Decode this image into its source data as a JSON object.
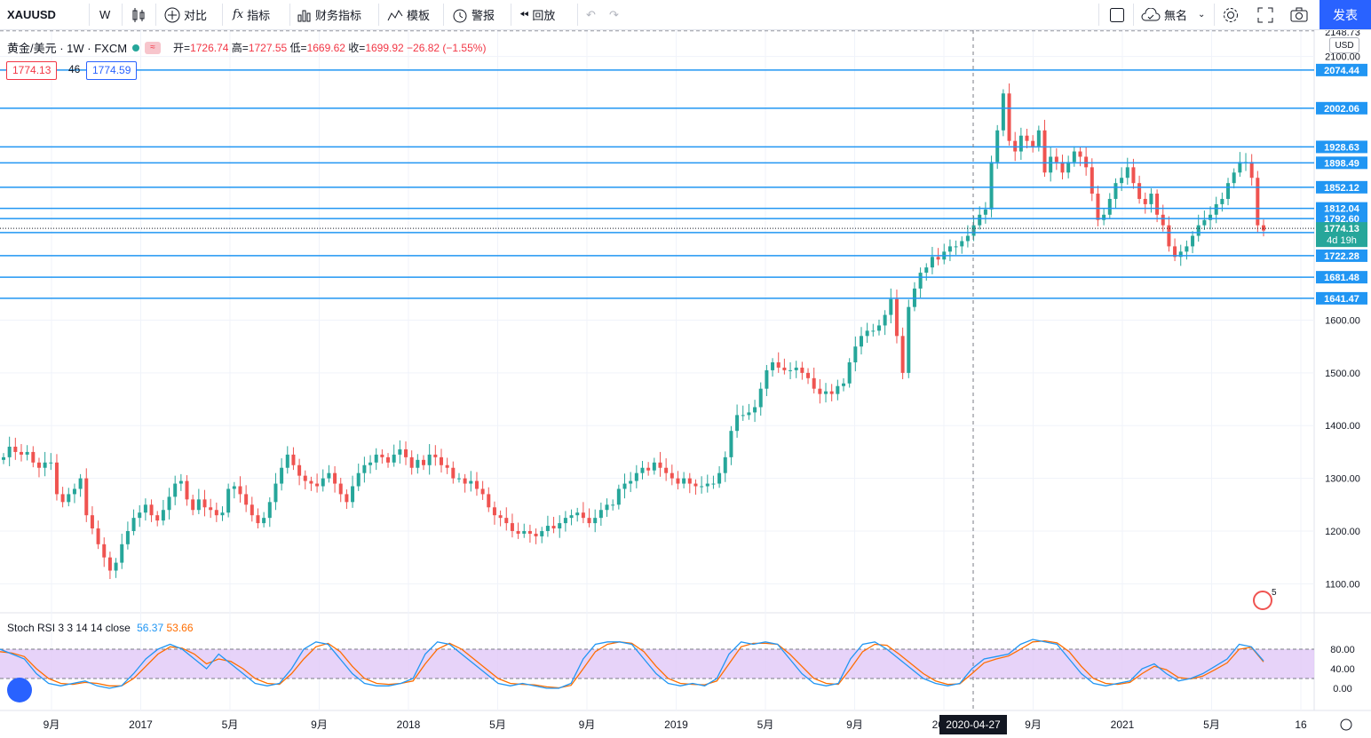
{
  "toolbar": {
    "symbol": "XAUUSD",
    "interval": "W",
    "compare": "对比",
    "indicators": "指标",
    "financials": "财务指标",
    "templates": "模板",
    "alert": "警报",
    "replay": "回放",
    "layout_name": "無名",
    "publish": "发表"
  },
  "legend": {
    "title": "黄金/美元 · 1W · FXCM",
    "open_label": "开=",
    "open": "1726.74",
    "high_label": "高=",
    "high": "1727.55",
    "low_label": "低=",
    "low": "1669.62",
    "close_label": "收=",
    "close": "1699.92",
    "change": "−26.82 (−1.55%)",
    "bid": "1774.13",
    "spread": "46",
    "ask": "1774.59"
  },
  "currency": "USD",
  "stoch": {
    "label": "Stoch RSI 3 3 14 14 close",
    "k": "56.37",
    "d": "53.66"
  },
  "crosshair_date": "2020-04-27",
  "countdown": "4d 19h",
  "top_price_partial": "2148.73",
  "alerts_count": "5",
  "colors": {
    "up": "#26a69a",
    "down": "#ef5350",
    "hline": "#2196f3",
    "stoch_k": "#2196f3",
    "stoch_d": "#ff6d00",
    "band": "#e1c8f7"
  },
  "chart_data": {
    "type": "candlestick",
    "y_range": [
      1045,
      2150
    ],
    "price_ticks": [
      "2100.00",
      "1600.00",
      "1500.00",
      "1400.00",
      "1300.00",
      "1200.00",
      "1100.00"
    ],
    "horizontal_lines": [
      "2074.44",
      "2002.06",
      "1928.63",
      "1898.49",
      "1852.12",
      "1812.04",
      "1792.60",
      "1766.11",
      "1722.28",
      "1681.48",
      "1641.47"
    ],
    "current_price": "1774.13",
    "x_labels": [
      "9月",
      "2017",
      "5月",
      "9月",
      "2018",
      "5月",
      "9月",
      "2019",
      "5月",
      "9月",
      "2020",
      "9月",
      "2021",
      "5月",
      "16"
    ],
    "weekly_closes": [
      1340,
      1360,
      1350,
      1345,
      1350,
      1330,
      1320,
      1330,
      1330,
      1270,
      1255,
      1270,
      1280,
      1300,
      1230,
      1205,
      1175,
      1150,
      1125,
      1140,
      1175,
      1200,
      1225,
      1235,
      1250,
      1230,
      1220,
      1240,
      1265,
      1290,
      1295,
      1260,
      1240,
      1260,
      1245,
      1240,
      1230,
      1235,
      1280,
      1285,
      1270,
      1250,
      1230,
      1215,
      1225,
      1255,
      1290,
      1320,
      1345,
      1325,
      1305,
      1295,
      1290,
      1285,
      1300,
      1310,
      1290,
      1270,
      1255,
      1285,
      1310,
      1325,
      1330,
      1345,
      1340,
      1330,
      1345,
      1355,
      1340,
      1320,
      1335,
      1325,
      1345,
      1340,
      1325,
      1320,
      1300,
      1300,
      1290,
      1295,
      1280,
      1270,
      1245,
      1230,
      1225,
      1215,
      1200,
      1195,
      1200,
      1195,
      1190,
      1200,
      1210,
      1205,
      1215,
      1225,
      1230,
      1235,
      1225,
      1215,
      1225,
      1240,
      1250,
      1250,
      1280,
      1290,
      1295,
      1310,
      1320,
      1315,
      1330,
      1320,
      1310,
      1300,
      1290,
      1300,
      1290,
      1285,
      1285,
      1290,
      1290,
      1310,
      1340,
      1390,
      1420,
      1420,
      1425,
      1435,
      1470,
      1505,
      1520,
      1510,
      1505,
      1505,
      1510,
      1500,
      1490,
      1470,
      1460,
      1465,
      1460,
      1475,
      1480,
      1520,
      1550,
      1570,
      1580,
      1580,
      1590,
      1610,
      1640,
      1570,
      1500,
      1625,
      1660,
      1690,
      1700,
      1720,
      1715,
      1730,
      1740,
      1740,
      1750,
      1760,
      1780,
      1800,
      1810,
      1900,
      1960,
      2030,
      1940,
      1920,
      1950,
      1940,
      1930,
      1960,
      1880,
      1910,
      1900,
      1880,
      1900,
      1920,
      1910,
      1890,
      1840,
      1790,
      1800,
      1830,
      1860,
      1870,
      1890,
      1860,
      1830,
      1820,
      1840,
      1800,
      1780,
      1740,
      1720,
      1730,
      1740,
      1760,
      1780,
      1790,
      1800,
      1820,
      1830,
      1860,
      1880,
      1900,
      1900,
      1870,
      1780,
      1770
    ],
    "stoch_k": [
      80,
      70,
      60,
      30,
      10,
      5,
      10,
      15,
      5,
      0,
      5,
      30,
      60,
      80,
      90,
      80,
      60,
      40,
      70,
      50,
      30,
      10,
      5,
      10,
      40,
      80,
      95,
      90,
      60,
      30,
      10,
      5,
      5,
      10,
      20,
      70,
      95,
      90,
      70,
      50,
      30,
      10,
      5,
      10,
      5,
      0,
      0,
      10,
      60,
      90,
      95,
      95,
      90,
      60,
      30,
      10,
      5,
      10,
      5,
      20,
      70,
      95,
      90,
      95,
      90,
      60,
      30,
      10,
      5,
      10,
      60,
      90,
      95,
      80,
      60,
      40,
      20,
      10,
      5,
      10,
      40,
      60,
      65,
      70,
      90,
      100,
      95,
      90,
      60,
      30,
      10,
      5,
      10,
      15,
      40,
      50,
      30,
      15,
      20,
      30,
      45,
      60,
      90,
      85,
      56
    ],
    "stoch_d": [
      75,
      72,
      65,
      40,
      20,
      10,
      8,
      12,
      10,
      5,
      5,
      20,
      45,
      70,
      85,
      82,
      70,
      50,
      60,
      55,
      40,
      20,
      10,
      8,
      30,
      60,
      85,
      92,
      75,
      45,
      20,
      10,
      8,
      10,
      15,
      50,
      80,
      92,
      80,
      60,
      40,
      20,
      10,
      8,
      7,
      3,
      1,
      6,
      40,
      75,
      90,
      95,
      92,
      75,
      45,
      20,
      10,
      8,
      7,
      15,
      50,
      85,
      92,
      92,
      90,
      70,
      45,
      20,
      10,
      8,
      40,
      75,
      90,
      88,
      70,
      50,
      30,
      15,
      8,
      9,
      30,
      52,
      60,
      66,
      80,
      95,
      97,
      93,
      75,
      45,
      20,
      10,
      8,
      12,
      30,
      45,
      38,
      22,
      19,
      25,
      38,
      52,
      80,
      84,
      54
    ]
  }
}
